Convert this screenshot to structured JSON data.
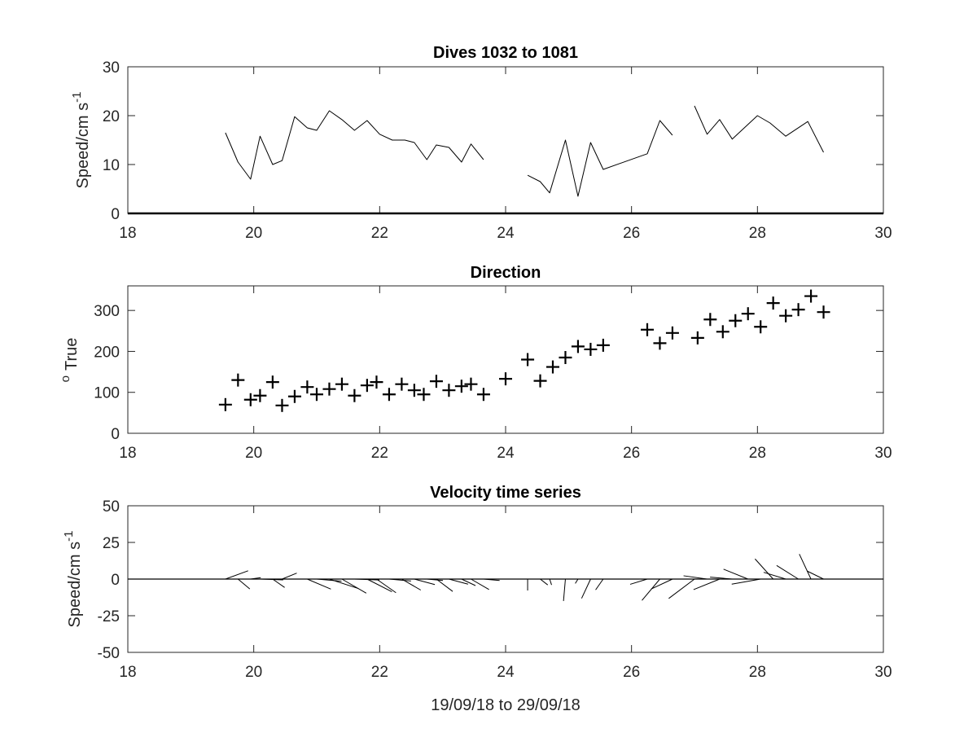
{
  "chart_data": [
    {
      "type": "line",
      "title": "Dives 1032 to 1081",
      "xlabel": "",
      "ylabel": "Speed/cm s",
      "ylabel_superscript": "-1",
      "xlim": [
        18,
        30
      ],
      "ylim": [
        0,
        30
      ],
      "xticks": [
        "18",
        "20",
        "22",
        "24",
        "26",
        "28",
        "30"
      ],
      "yticks": [
        "0",
        "10",
        "20",
        "30"
      ],
      "series": [
        {
          "segments": [
            [
              [
                19.55,
                16.5
              ],
              [
                19.75,
                10.5
              ],
              [
                19.95,
                7.0
              ],
              [
                20.1,
                15.8
              ],
              [
                20.3,
                10.0
              ],
              [
                20.45,
                10.8
              ],
              [
                20.65,
                19.8
              ],
              [
                20.85,
                17.5
              ],
              [
                21.0,
                17.0
              ],
              [
                21.2,
                21.0
              ],
              [
                21.4,
                19.2
              ],
              [
                21.6,
                17.0
              ],
              [
                21.8,
                19.0
              ],
              [
                22.0,
                16.2
              ],
              [
                22.2,
                15.0
              ],
              [
                22.4,
                15.0
              ],
              [
                22.55,
                14.5
              ],
              [
                22.75,
                11.0
              ],
              [
                22.9,
                14.0
              ],
              [
                23.1,
                13.5
              ],
              [
                23.3,
                10.5
              ],
              [
                23.45,
                14.2
              ],
              [
                23.65,
                11.0
              ]
            ],
            [
              [
                24.35,
                7.8
              ],
              [
                24.55,
                6.5
              ],
              [
                24.7,
                4.2
              ],
              [
                24.95,
                15.0
              ],
              [
                25.15,
                3.5
              ],
              [
                25.35,
                14.5
              ],
              [
                25.55,
                9.0
              ],
              [
                26.25,
                12.2
              ],
              [
                26.45,
                19.0
              ],
              [
                26.65,
                16.0
              ]
            ],
            [
              [
                27.0,
                22.0
              ],
              [
                27.2,
                16.2
              ],
              [
                27.4,
                19.2
              ],
              [
                27.6,
                15.2
              ],
              [
                28.0,
                20.0
              ],
              [
                28.2,
                18.5
              ],
              [
                28.45,
                15.8
              ],
              [
                28.8,
                18.8
              ],
              [
                29.05,
                12.5
              ]
            ]
          ]
        }
      ]
    },
    {
      "type": "scatter",
      "title": "Direction",
      "xlabel": "",
      "ylabel": "True",
      "ylabel_superscript": "o",
      "xlim": [
        18,
        30
      ],
      "ylim": [
        0,
        360
      ],
      "xticks": [
        "18",
        "20",
        "22",
        "24",
        "26",
        "28",
        "30"
      ],
      "yticks": [
        "0",
        "100",
        "200",
        "300"
      ],
      "marker": "+",
      "x": [
        19.55,
        19.75,
        19.95,
        20.1,
        20.3,
        20.45,
        20.65,
        20.85,
        21.0,
        21.2,
        21.4,
        21.6,
        21.8,
        21.95,
        22.15,
        22.35,
        22.55,
        22.7,
        22.9,
        23.1,
        23.3,
        23.45,
        23.65,
        24.0,
        24.35,
        24.55,
        24.75,
        24.95,
        25.15,
        25.35,
        25.55,
        26.25,
        26.45,
        26.65,
        27.05,
        27.25,
        27.45,
        27.65,
        27.85,
        28.05,
        28.25,
        28.45,
        28.65,
        28.85,
        29.05
      ],
      "y": [
        70,
        130,
        82,
        92,
        125,
        68,
        90,
        113,
        95,
        108,
        120,
        92,
        117,
        125,
        95,
        120,
        105,
        95,
        127,
        105,
        115,
        120,
        95,
        133,
        180,
        128,
        162,
        185,
        212,
        205,
        215,
        253,
        220,
        245,
        233,
        278,
        248,
        275,
        292,
        260,
        318,
        287,
        302,
        335,
        296
      ]
    },
    {
      "type": "line",
      "title": "Velocity time series",
      "xlabel": "19/09/18 to 29/09/18",
      "ylabel": "Speed/cm s",
      "ylabel_superscript": "-1",
      "xlim": [
        18,
        30
      ],
      "ylim": [
        -50,
        50
      ],
      "xticks": [
        "18",
        "20",
        "22",
        "24",
        "26",
        "28",
        "30"
      ],
      "yticks": [
        "50",
        "25",
        "0",
        "-25",
        "-50"
      ],
      "x": [
        19.55,
        19.75,
        19.95,
        20.1,
        20.3,
        20.45,
        20.65,
        20.85,
        21.0,
        21.2,
        21.4,
        21.6,
        21.8,
        21.95,
        22.15,
        22.35,
        22.55,
        22.75,
        22.9,
        23.1,
        23.3,
        23.45,
        23.65,
        24.35,
        24.55,
        24.7,
        24.95,
        25.15,
        25.35,
        25.55,
        26.25,
        26.45,
        26.65,
        27.0,
        27.2,
        27.4,
        27.6,
        27.85,
        28.05,
        28.25,
        28.45,
        28.65,
        28.85,
        29.05
      ],
      "speed": [
        16.5,
        10.5,
        7.0,
        15.8,
        10.0,
        10.8,
        19.8,
        17.5,
        17.0,
        21.0,
        19.2,
        17.0,
        19.0,
        16.2,
        15.0,
        15.0,
        14.5,
        11.0,
        14.0,
        13.5,
        10.5,
        14.2,
        11.0,
        7.8,
        6.5,
        4.2,
        15.0,
        3.5,
        14.5,
        9.0,
        12.2,
        19.0,
        16.0,
        22.0,
        16.2,
        19.2,
        15.2,
        18.0,
        20.0,
        18.5,
        15.8,
        17.5,
        18.8,
        12.5
      ],
      "direction": [
        70,
        130,
        82,
        92,
        125,
        68,
        90,
        113,
        95,
        108,
        120,
        92,
        117,
        125,
        95,
        120,
        105,
        95,
        127,
        105,
        115,
        120,
        95,
        180,
        128,
        162,
        185,
        212,
        205,
        215,
        253,
        220,
        245,
        233,
        278,
        248,
        275,
        292,
        260,
        318,
        287,
        302,
        335,
        296
      ]
    }
  ]
}
